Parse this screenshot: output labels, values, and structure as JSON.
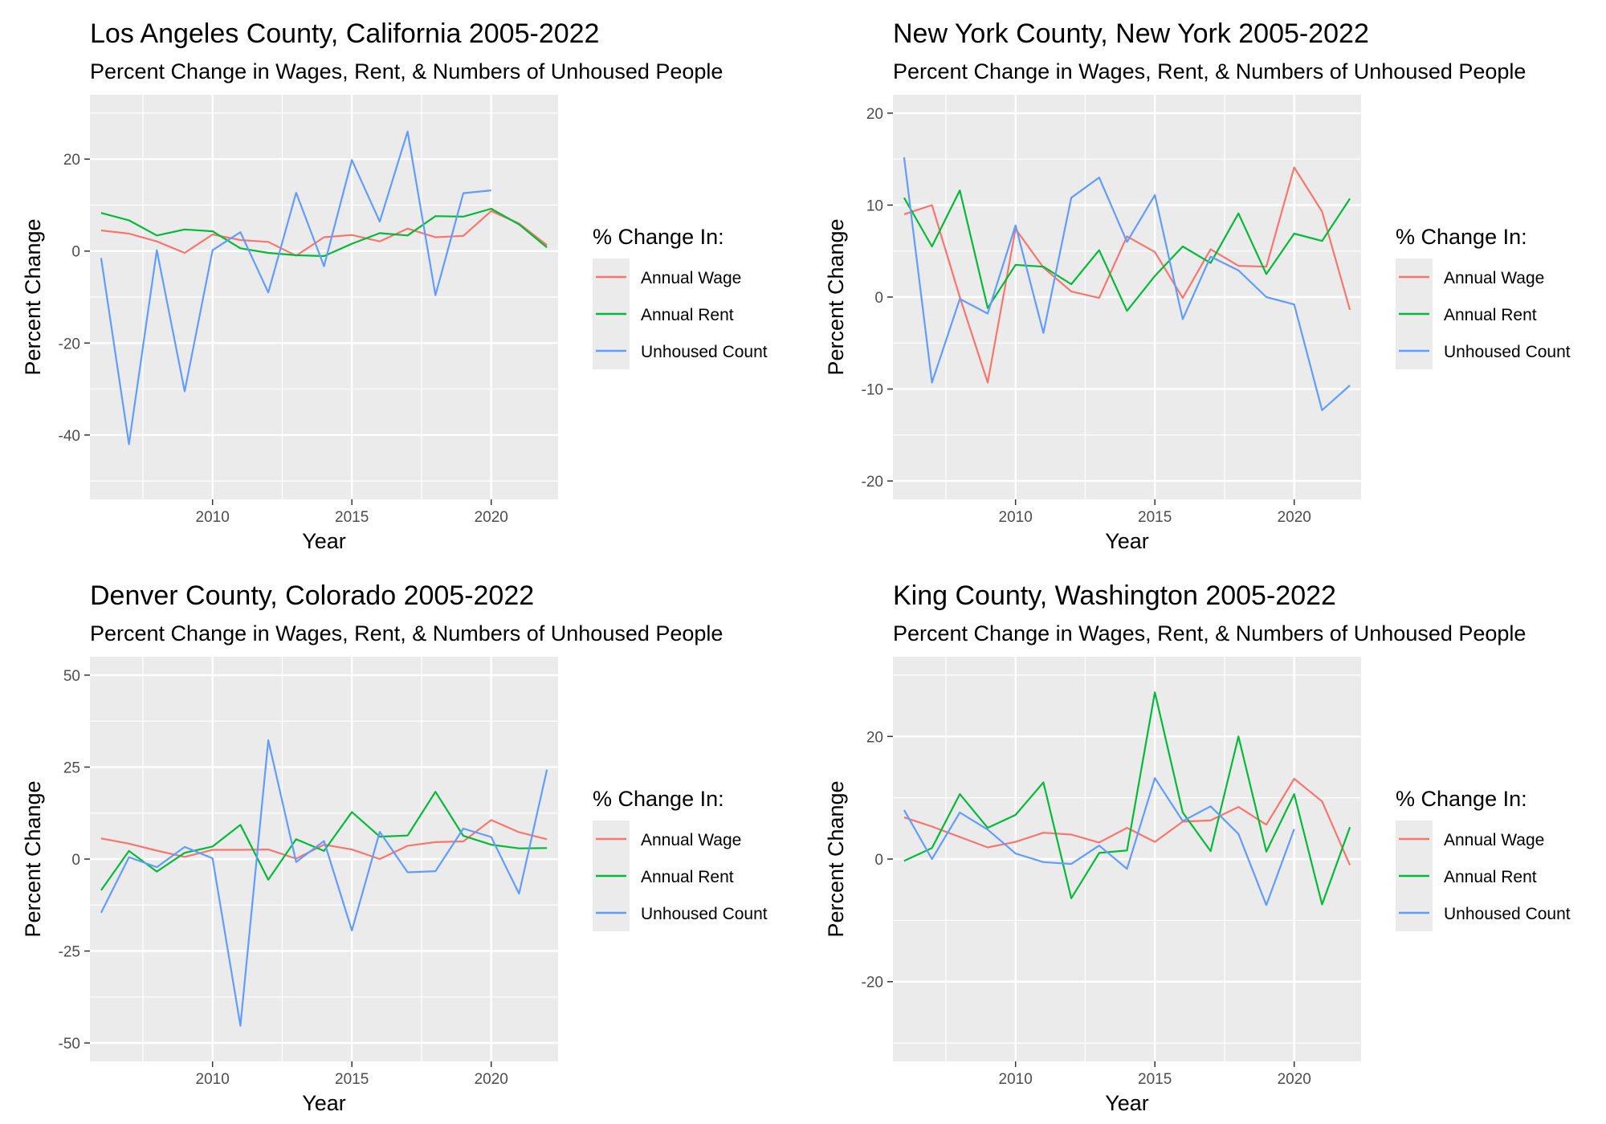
{
  "colors": {
    "panel_bg": "#EBEBEB",
    "grid": "#FFFFFF",
    "annual_wage": "#F8766D",
    "annual_rent": "#00BA38",
    "unhoused_count": "#619CFF"
  },
  "legend": {
    "title": "% Change In:",
    "labels": [
      "Annual Wage",
      "Annual Rent",
      "Unhoused Count"
    ]
  },
  "chart_data": [
    {
      "type": "line",
      "title": "Los Angeles County, California 2005-2022",
      "subtitle": "Percent Change in Wages, Rent, & Numbers of Unhoused People",
      "xlabel": "Year",
      "ylabel": "Percent Change",
      "xlim": [
        2005.6,
        2022.4
      ],
      "ylim": [
        -54,
        34
      ],
      "x_ticks": [
        2010,
        2015,
        2020
      ],
      "y_ticks": [
        -40,
        -20,
        0,
        20
      ],
      "grid": true,
      "legend_position": "right",
      "series": [
        {
          "name": "Annual Wage",
          "x": [
            2006,
            2007,
            2008,
            2009,
            2010,
            2011,
            2012,
            2013,
            2014,
            2015,
            2016,
            2017,
            2018,
            2019,
            2020,
            2021,
            2022
          ],
          "values": [
            4.5,
            3.8,
            2.1,
            -0.4,
            3.6,
            2.4,
            2.0,
            -1.0,
            3.0,
            3.5,
            2.1,
            4.9,
            3.0,
            3.3,
            8.7,
            6.0,
            1.3
          ]
        },
        {
          "name": "Annual Rent",
          "x": [
            2006,
            2007,
            2008,
            2009,
            2010,
            2011,
            2012,
            2013,
            2014,
            2015,
            2016,
            2017,
            2018,
            2019,
            2020,
            2021,
            2022
          ],
          "values": [
            8.3,
            6.7,
            3.4,
            4.7,
            4.3,
            0.6,
            -0.4,
            -0.9,
            -1.1,
            1.6,
            3.9,
            3.4,
            7.6,
            7.5,
            9.2,
            5.8,
            0.8
          ]
        },
        {
          "name": "Unhoused Count",
          "x": [
            2006,
            2007,
            2008,
            2009,
            2010,
            2011,
            2012,
            2013,
            2014,
            2015,
            2016,
            2017,
            2018,
            2019,
            2020
          ],
          "values": [
            -1.5,
            -42,
            0.2,
            -30.5,
            0.2,
            4.1,
            -9.0,
            12.7,
            -3.3,
            19.8,
            6.4,
            26.0,
            -9.6,
            12.6,
            13.2
          ]
        }
      ]
    },
    {
      "type": "line",
      "title": "New York County, New York 2005-2022",
      "subtitle": "Percent Change in Wages, Rent, & Numbers of Unhoused People",
      "xlabel": "Year",
      "ylabel": "Percent Change",
      "xlim": [
        2005.6,
        2022.4
      ],
      "ylim": [
        -22,
        22
      ],
      "x_ticks": [
        2010,
        2015,
        2020
      ],
      "y_ticks": [
        -20,
        -10,
        0,
        10,
        20
      ],
      "grid": true,
      "legend_position": "right",
      "series": [
        {
          "name": "Annual Wage",
          "x": [
            2006,
            2007,
            2008,
            2009,
            2010,
            2011,
            2012,
            2013,
            2014,
            2015,
            2016,
            2017,
            2018,
            2019,
            2020,
            2021,
            2022
          ],
          "values": [
            9.0,
            10.0,
            0.0,
            -9.3,
            7.4,
            3.2,
            0.6,
            -0.1,
            6.6,
            4.9,
            -0.1,
            5.2,
            3.4,
            3.3,
            14.1,
            9.3,
            -1.4
          ]
        },
        {
          "name": "Annual Rent",
          "x": [
            2006,
            2007,
            2008,
            2009,
            2010,
            2011,
            2012,
            2013,
            2014,
            2015,
            2016,
            2017,
            2018,
            2019,
            2020,
            2021,
            2022
          ],
          "values": [
            10.8,
            5.5,
            11.6,
            -1.2,
            3.5,
            3.3,
            1.4,
            5.1,
            -1.5,
            2.3,
            5.5,
            3.7,
            9.1,
            2.5,
            6.9,
            6.1,
            10.7
          ]
        },
        {
          "name": "Unhoused Count",
          "x": [
            2006,
            2007,
            2008,
            2009,
            2010,
            2011,
            2012,
            2013,
            2014,
            2015,
            2016,
            2017,
            2018,
            2019,
            2020,
            2021,
            2022
          ],
          "values": [
            15.2,
            -9.3,
            -0.2,
            -1.8,
            7.8,
            -3.9,
            10.8,
            13.0,
            6.0,
            11.1,
            -2.4,
            4.4,
            2.9,
            0.0,
            -0.8,
            -12.3,
            -9.6
          ]
        }
      ]
    },
    {
      "type": "line",
      "title": "Denver County, Colorado 2005-2022",
      "subtitle": "Percent Change in Wages, Rent, & Numbers of Unhoused People",
      "xlabel": "Year",
      "ylabel": "Percent Change",
      "xlim": [
        2005.6,
        2022.4
      ],
      "ylim": [
        -55,
        55
      ],
      "x_ticks": [
        2010,
        2015,
        2020
      ],
      "y_ticks": [
        -50,
        -25,
        0,
        25,
        50
      ],
      "grid": true,
      "legend_position": "right",
      "series": [
        {
          "name": "Annual Wage",
          "x": [
            2006,
            2007,
            2008,
            2009,
            2010,
            2011,
            2012,
            2013,
            2014,
            2015,
            2016,
            2017,
            2018,
            2019,
            2020,
            2021,
            2022
          ],
          "values": [
            5.6,
            4.2,
            2.3,
            0.6,
            2.5,
            2.5,
            2.6,
            0.1,
            3.9,
            2.6,
            0.0,
            3.6,
            4.6,
            4.8,
            10.6,
            7.3,
            5.4
          ]
        },
        {
          "name": "Annual Rent",
          "x": [
            2006,
            2007,
            2008,
            2009,
            2010,
            2011,
            2012,
            2013,
            2014,
            2015,
            2016,
            2017,
            2018,
            2019,
            2020,
            2021,
            2022
          ],
          "values": [
            -8.5,
            2.2,
            -3.4,
            1.7,
            3.4,
            9.3,
            -5.6,
            5.4,
            2.2,
            12.8,
            6.1,
            6.4,
            18.3,
            6.3,
            3.9,
            2.9,
            3.0
          ]
        },
        {
          "name": "Unhoused Count",
          "x": [
            2006,
            2007,
            2008,
            2009,
            2010,
            2011,
            2012,
            2013,
            2014,
            2015,
            2016,
            2017,
            2018,
            2019,
            2020,
            2021,
            2022
          ],
          "values": [
            -14.6,
            0.5,
            -2.2,
            3.3,
            0.2,
            -45.3,
            32.3,
            -0.8,
            4.9,
            -19.4,
            7.4,
            -3.6,
            -3.3,
            8.3,
            6.0,
            -9.4,
            24.3
          ]
        }
      ]
    },
    {
      "type": "line",
      "title": "King County, Washington 2005-2022",
      "subtitle": "Percent Change in Wages, Rent, & Numbers of Unhoused People",
      "xlabel": "Year",
      "ylabel": "Percent Change",
      "xlim": [
        2005.6,
        2022.4
      ],
      "ylim": [
        -33,
        33
      ],
      "x_ticks": [
        2010,
        2015,
        2020
      ],
      "y_ticks": [
        -20,
        0,
        20
      ],
      "grid": true,
      "legend_position": "right",
      "series": [
        {
          "name": "Annual Wage",
          "x": [
            2006,
            2007,
            2008,
            2009,
            2010,
            2011,
            2012,
            2013,
            2014,
            2015,
            2016,
            2017,
            2018,
            2019,
            2020,
            2021,
            2022
          ],
          "values": [
            6.8,
            5.3,
            3.6,
            1.9,
            2.8,
            4.3,
            4.0,
            2.7,
            5.1,
            2.8,
            6.1,
            6.3,
            8.5,
            5.6,
            13.1,
            9.4,
            -1.0
          ]
        },
        {
          "name": "Annual Rent",
          "x": [
            2006,
            2007,
            2008,
            2009,
            2010,
            2011,
            2012,
            2013,
            2014,
            2015,
            2016,
            2017,
            2018,
            2019,
            2020,
            2021,
            2022
          ],
          "values": [
            -0.3,
            1.8,
            10.6,
            5.1,
            7.2,
            12.5,
            -6.4,
            1.0,
            1.4,
            27.2,
            7.6,
            1.3,
            20.0,
            1.2,
            10.6,
            -7.4,
            5.2
          ]
        },
        {
          "name": "Unhoused Count",
          "x": [
            2006,
            2007,
            2008,
            2009,
            2010,
            2011,
            2012,
            2013,
            2014,
            2015,
            2016,
            2017,
            2018,
            2019,
            2020
          ],
          "values": [
            8.0,
            0.0,
            7.6,
            4.8,
            0.9,
            -0.5,
            -0.8,
            2.2,
            -1.6,
            13.2,
            6.2,
            8.6,
            4.1,
            -7.5,
            4.9
          ]
        }
      ]
    }
  ]
}
